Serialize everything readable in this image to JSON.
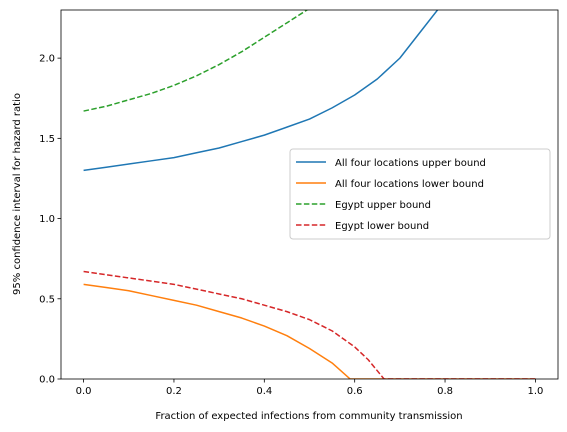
{
  "chart_data": {
    "type": "line",
    "xlabel": "Fraction of expected infections from community transmission",
    "ylabel": "95% confidence interval for hazard ratio",
    "xlim": [
      -0.05,
      1.05
    ],
    "ylim": [
      0.0,
      2.3
    ],
    "xticks": [
      0.0,
      0.2,
      0.4,
      0.6,
      0.8,
      1.0
    ],
    "xtick_labels": [
      "0.0",
      "0.2",
      "0.4",
      "0.6",
      "0.8",
      "1.0"
    ],
    "yticks": [
      0.0,
      0.5,
      1.0,
      1.5,
      2.0
    ],
    "ytick_labels": [
      "0.0",
      "0.5",
      "1.0",
      "1.5",
      "2.0"
    ],
    "grid": false,
    "legend_position": "center-right",
    "series": [
      {
        "name": "All four locations upper bound",
        "color": "#1f77b4",
        "dash": "solid",
        "x": [
          0.0,
          0.05,
          0.1,
          0.15,
          0.2,
          0.25,
          0.3,
          0.35,
          0.4,
          0.45,
          0.5,
          0.55,
          0.6,
          0.65,
          0.7,
          0.75,
          0.8
        ],
        "y": [
          1.3,
          1.32,
          1.34,
          1.36,
          1.38,
          1.41,
          1.44,
          1.48,
          1.52,
          1.57,
          1.62,
          1.69,
          1.77,
          1.87,
          2.0,
          2.18,
          2.36
        ]
      },
      {
        "name": "All four locations lower bound",
        "color": "#ff7f0e",
        "dash": "solid",
        "x": [
          0.0,
          0.05,
          0.1,
          0.15,
          0.2,
          0.25,
          0.3,
          0.35,
          0.4,
          0.45,
          0.5,
          0.55,
          0.59,
          0.65,
          0.7,
          0.8,
          0.9,
          1.0
        ],
        "y": [
          0.59,
          0.57,
          0.55,
          0.52,
          0.49,
          0.46,
          0.42,
          0.38,
          0.33,
          0.27,
          0.19,
          0.1,
          0.0,
          0.0,
          0.0,
          0.0,
          0.0,
          0.0
        ]
      },
      {
        "name": "Egypt upper bound",
        "color": "#2ca02c",
        "dash": "dashed",
        "x": [
          0.0,
          0.05,
          0.1,
          0.15,
          0.2,
          0.25,
          0.3,
          0.35,
          0.4,
          0.45,
          0.5,
          0.53
        ],
        "y": [
          1.67,
          1.7,
          1.74,
          1.78,
          1.83,
          1.89,
          1.96,
          2.04,
          2.13,
          2.22,
          2.31,
          2.36
        ]
      },
      {
        "name": "Egypt lower bound",
        "color": "#d62728",
        "dash": "dashed",
        "x": [
          0.0,
          0.05,
          0.1,
          0.15,
          0.2,
          0.25,
          0.3,
          0.35,
          0.4,
          0.45,
          0.5,
          0.55,
          0.6,
          0.63,
          0.665,
          0.7,
          0.8,
          0.9,
          1.0
        ],
        "y": [
          0.67,
          0.65,
          0.63,
          0.61,
          0.59,
          0.56,
          0.53,
          0.5,
          0.46,
          0.42,
          0.37,
          0.3,
          0.2,
          0.12,
          0.0,
          0.0,
          0.0,
          0.0,
          0.0
        ]
      }
    ]
  }
}
